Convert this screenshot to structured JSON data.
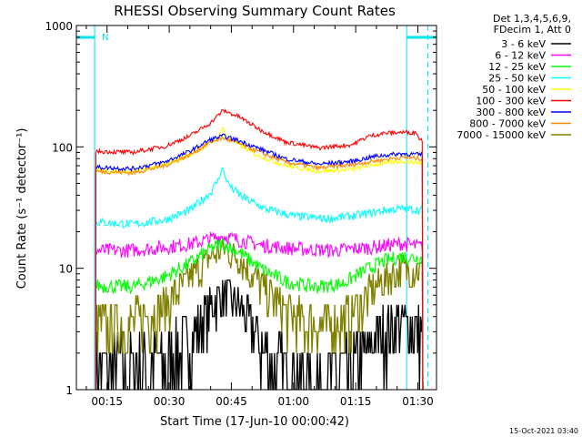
{
  "chart_data": {
    "type": "line",
    "title": "RHESSI Observing Summary Count Rates",
    "xlabel": "Start Time (17-Jun-10 00:00:42)",
    "ylabel": "Count Rate (s⁻¹ detector⁻¹)",
    "y_scale": "log",
    "ylim": [
      1,
      1000
    ],
    "xlim_minutes": [
      7.6,
      94.5
    ],
    "y_ticks": [
      {
        "value": 1,
        "label": "1"
      },
      {
        "value": 10,
        "label": "10"
      },
      {
        "value": 100,
        "label": "100"
      },
      {
        "value": 1000,
        "label": "1000"
      }
    ],
    "x_ticks": [
      {
        "minutes": 15,
        "label": "00:15"
      },
      {
        "minutes": 30,
        "label": "00:30"
      },
      {
        "minutes": 45,
        "label": "00:45"
      },
      {
        "minutes": 60,
        "label": "01:00"
      },
      {
        "minutes": 75,
        "label": "01:15"
      },
      {
        "minutes": 90,
        "label": "01:30"
      }
    ],
    "legend": {
      "position": "right, outside plot",
      "header": [
        "Det 1,3,4,5,6,9,",
        "FDecim 1, Att 0"
      ]
    },
    "night_intervals_minutes": [
      [
        7.6,
        12.0
      ],
      [
        87.3,
        94.5
      ]
    ],
    "saa_dashed_minutes": [
      12.0,
      92.4
    ],
    "night_marker": "N",
    "data_interval_minutes": [
      12.3,
      91.2
    ],
    "series": [
      {
        "name": "3 - 6 keV",
        "color": "#000000",
        "points": [
          [
            12.3,
            1.6
          ],
          [
            21,
            1.5
          ],
          [
            29,
            1.7
          ],
          [
            34,
            2.4
          ],
          [
            39,
            4.2
          ],
          [
            43,
            6.3
          ],
          [
            47,
            4.8
          ],
          [
            51,
            2.9
          ],
          [
            55,
            1.7
          ],
          [
            60,
            1.3
          ],
          [
            66,
            1.2
          ],
          [
            72,
            1.4
          ],
          [
            77,
            2.0
          ],
          [
            81,
            3.0
          ],
          [
            85,
            3.6
          ],
          [
            89,
            3.3
          ],
          [
            91.2,
            3.0
          ]
        ]
      },
      {
        "name": "6 - 12 keV",
        "color": "#ff00ff",
        "points": [
          [
            12.3,
            14
          ],
          [
            20,
            14
          ],
          [
            30,
            15
          ],
          [
            36,
            16
          ],
          [
            40,
            17.5
          ],
          [
            43,
            18.5
          ],
          [
            47,
            17
          ],
          [
            52,
            15.5
          ],
          [
            60,
            14.5
          ],
          [
            70,
            14
          ],
          [
            80,
            15
          ],
          [
            86,
            16
          ],
          [
            91.2,
            15
          ]
        ]
      },
      {
        "name": "12 - 25 keV",
        "color": "#00ff00",
        "points": [
          [
            12.3,
            7.2
          ],
          [
            21,
            7.0
          ],
          [
            29,
            8.5
          ],
          [
            35,
            11
          ],
          [
            40,
            14.5
          ],
          [
            43,
            16
          ],
          [
            47,
            13.5
          ],
          [
            52,
            10
          ],
          [
            58,
            7.8
          ],
          [
            65,
            7.0
          ],
          [
            72,
            7.5
          ],
          [
            77,
            9.5
          ],
          [
            82,
            11.5
          ],
          [
            86,
            12.5
          ],
          [
            91.2,
            12
          ]
        ]
      },
      {
        "name": "25 - 50 keV",
        "color": "#00ffff",
        "points": [
          [
            12.3,
            24
          ],
          [
            21,
            23
          ],
          [
            29,
            25
          ],
          [
            35,
            30
          ],
          [
            40,
            42
          ],
          [
            42,
            55
          ],
          [
            42.8,
            68
          ],
          [
            43.6,
            55
          ],
          [
            45,
            46
          ],
          [
            48,
            38
          ],
          [
            53,
            31
          ],
          [
            60,
            27
          ],
          [
            68,
            25.5
          ],
          [
            76,
            27.5
          ],
          [
            82,
            30
          ],
          [
            86,
            31
          ],
          [
            91.2,
            30
          ]
        ]
      },
      {
        "name": "50 - 100 keV",
        "color": "#ffff00",
        "points": [
          [
            12.3,
            64
          ],
          [
            21,
            62
          ],
          [
            29,
            71
          ],
          [
            35,
            86
          ],
          [
            40,
            108
          ],
          [
            42,
            120
          ],
          [
            42.8,
            150
          ],
          [
            43.6,
            125
          ],
          [
            46,
            108
          ],
          [
            51,
            86
          ],
          [
            58,
            70
          ],
          [
            66,
            63
          ],
          [
            74,
            65
          ],
          [
            80,
            72
          ],
          [
            86,
            76
          ],
          [
            91.2,
            74
          ]
        ]
      },
      {
        "name": "100 - 300 keV",
        "color": "#ff0000",
        "points": [
          [
            12.3,
            92
          ],
          [
            21,
            90
          ],
          [
            29,
            101
          ],
          [
            35,
            123
          ],
          [
            40,
            158
          ],
          [
            43,
            200
          ],
          [
            47,
            176
          ],
          [
            52,
            138
          ],
          [
            58,
            110
          ],
          [
            66,
            98
          ],
          [
            74,
            104
          ],
          [
            78,
            122
          ],
          [
            82,
            130
          ],
          [
            86,
            132
          ],
          [
            89.8,
            131
          ],
          [
            90.2,
            118
          ],
          [
            91.2,
            112
          ]
        ]
      },
      {
        "name": "300 - 800 keV",
        "color": "#0000ff",
        "points": [
          [
            12.3,
            68
          ],
          [
            21,
            66
          ],
          [
            29,
            75
          ],
          [
            35,
            92
          ],
          [
            40,
            115
          ],
          [
            43,
            123
          ],
          [
            47,
            112
          ],
          [
            52,
            96
          ],
          [
            58,
            80
          ],
          [
            66,
            72
          ],
          [
            74,
            76
          ],
          [
            80,
            84
          ],
          [
            86,
            88
          ],
          [
            91.2,
            86
          ]
        ]
      },
      {
        "name": "800 - 7000 keV",
        "color": "#ff8800",
        "points": [
          [
            12.3,
            63
          ],
          [
            21,
            61
          ],
          [
            29,
            70
          ],
          [
            35,
            86
          ],
          [
            40,
            110
          ],
          [
            43,
            118
          ],
          [
            47,
            106
          ],
          [
            52,
            90
          ],
          [
            58,
            75
          ],
          [
            66,
            67
          ],
          [
            74,
            71
          ],
          [
            80,
            77
          ],
          [
            86,
            82
          ],
          [
            91.2,
            80
          ]
        ]
      },
      {
        "name": "7000 - 15000 keV",
        "color": "#808000",
        "points": [
          [
            12.3,
            3.5
          ],
          [
            21,
            3.5
          ],
          [
            29,
            5.0
          ],
          [
            35,
            8.5
          ],
          [
            40,
            12.5
          ],
          [
            43,
            14.5
          ],
          [
            47,
            12
          ],
          [
            52,
            7.5
          ],
          [
            57,
            4.7
          ],
          [
            62,
            3.6
          ],
          [
            68,
            3.4
          ],
          [
            73,
            4.0
          ],
          [
            78,
            6.0
          ],
          [
            82,
            8.3
          ],
          [
            86,
            10
          ],
          [
            91.2,
            9.5
          ]
        ]
      }
    ]
  },
  "footer": {
    "timestamp": "15-Oct-2021 03:40"
  }
}
